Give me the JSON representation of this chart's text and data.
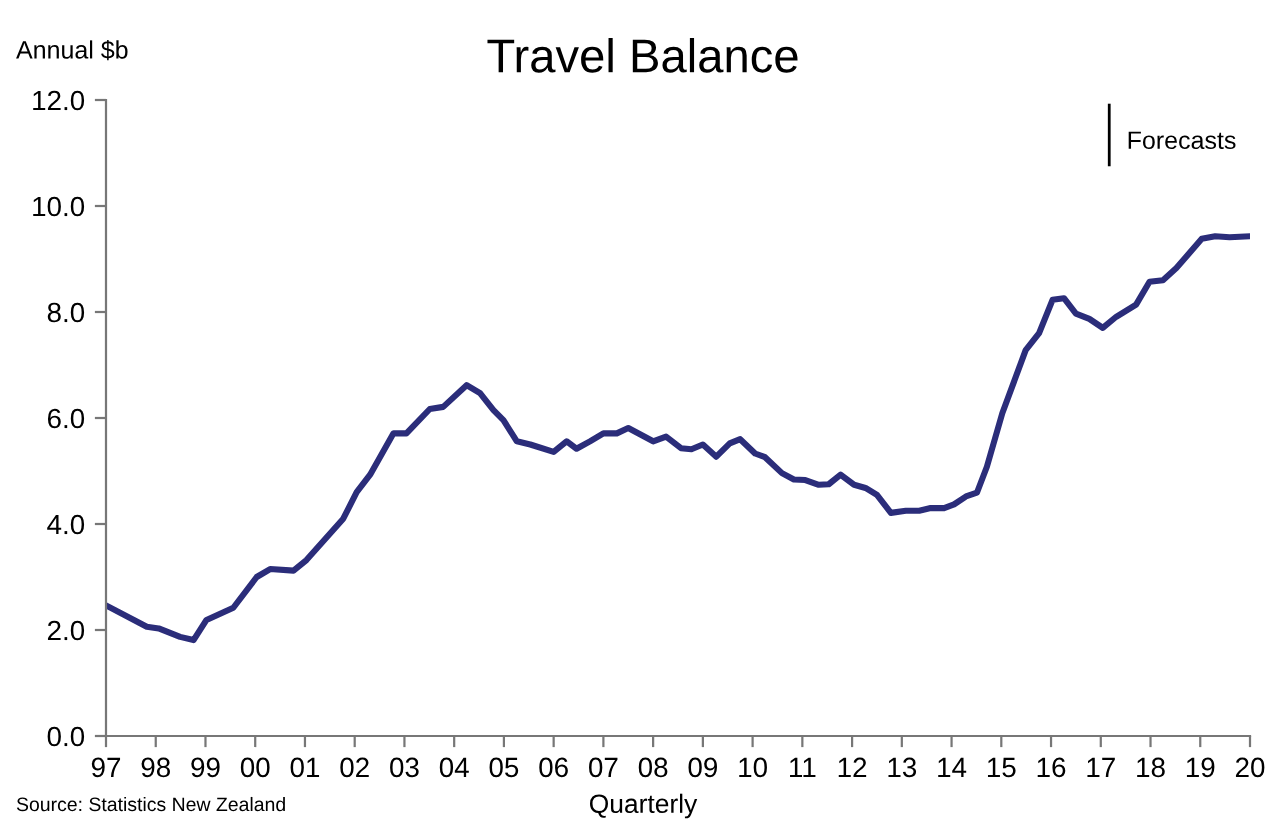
{
  "chart_data": {
    "type": "line",
    "title": "Travel Balance",
    "ylabel": "Annual $b",
    "xlabel": "Quarterly",
    "annotations": [
      "Source: Statistics New Zealand"
    ],
    "x": [
      1997.01,
      1997.82,
      1998.06,
      1998.49,
      1998.76,
      1999.02,
      1999.56,
      2000.03,
      2000.3,
      2000.77,
      2001.03,
      2001.77,
      2002.04,
      2002.31,
      2002.78,
      2003.04,
      2003.51,
      2003.78,
      2004.25,
      2004.52,
      2004.79,
      2004.99,
      2005.26,
      2005.53,
      2006.0,
      2006.26,
      2006.46,
      2006.73,
      2007.0,
      2007.27,
      2007.5,
      2008.0,
      2008.26,
      2008.56,
      2008.77,
      2009.0,
      2009.27,
      2009.54,
      2009.75,
      2010.05,
      2010.25,
      2010.59,
      2010.83,
      2011.06,
      2011.33,
      2011.53,
      2011.77,
      2012.04,
      2012.27,
      2012.5,
      2012.78,
      2013.08,
      2013.35,
      2013.58,
      2013.85,
      2014.05,
      2014.29,
      2014.51,
      2014.71,
      2015.02,
      2015.49,
      2015.76,
      2016.03,
      2016.26,
      2016.5,
      2016.77,
      2017.04,
      2017.31,
      2017.71,
      2017.98,
      2018.25,
      2018.52,
      2019.03,
      2019.3,
      2019.59,
      2020.0
    ],
    "series": [
      {
        "color": "#2b2d7a",
        "values": [
          2.46,
          2.06,
          2.03,
          1.87,
          1.81,
          2.19,
          2.42,
          3.0,
          3.15,
          3.12,
          3.32,
          4.1,
          4.6,
          4.93,
          5.71,
          5.71,
          6.17,
          6.21,
          6.62,
          6.47,
          6.15,
          5.96,
          5.56,
          5.5,
          5.36,
          5.56,
          5.42,
          5.56,
          5.71,
          5.71,
          5.81,
          5.56,
          5.65,
          5.43,
          5.41,
          5.5,
          5.27,
          5.52,
          5.6,
          5.33,
          5.26,
          4.96,
          4.84,
          4.83,
          4.74,
          4.75,
          4.93,
          4.74,
          4.68,
          4.55,
          4.21,
          4.25,
          4.25,
          4.3,
          4.3,
          4.37,
          4.52,
          4.59,
          5.08,
          6.09,
          7.28,
          7.6,
          8.23,
          8.26,
          7.97,
          7.87,
          7.7,
          7.91,
          8.14,
          8.57,
          8.6,
          8.83,
          9.38,
          9.43,
          9.41,
          9.43
        ]
      }
    ],
    "xlim": [
      1997,
      2020
    ],
    "xticks": [
      {
        "value": 1997,
        "label": "97"
      },
      {
        "value": 1998,
        "label": "98"
      },
      {
        "value": 1999,
        "label": "99"
      },
      {
        "value": 2000,
        "label": "00"
      },
      {
        "value": 2001,
        "label": "01"
      },
      {
        "value": 2002,
        "label": "02"
      },
      {
        "value": 2003,
        "label": "03"
      },
      {
        "value": 2004,
        "label": "04"
      },
      {
        "value": 2005,
        "label": "05"
      },
      {
        "value": 2006,
        "label": "06"
      },
      {
        "value": 2007,
        "label": "07"
      },
      {
        "value": 2008,
        "label": "08"
      },
      {
        "value": 2009,
        "label": "09"
      },
      {
        "value": 2010,
        "label": "10"
      },
      {
        "value": 2011,
        "label": "11"
      },
      {
        "value": 2012,
        "label": "12"
      },
      {
        "value": 2013,
        "label": "13"
      },
      {
        "value": 2014,
        "label": "14"
      },
      {
        "value": 2015,
        "label": "15"
      },
      {
        "value": 2016,
        "label": "16"
      },
      {
        "value": 2017,
        "label": "17"
      },
      {
        "value": 2018,
        "label": "18"
      },
      {
        "value": 2019,
        "label": "19"
      },
      {
        "value": 2020,
        "label": "20"
      }
    ],
    "ylim": [
      0,
      12
    ],
    "yticks": [
      {
        "value": 0,
        "label": "0.0"
      },
      {
        "value": 2,
        "label": "2.0"
      },
      {
        "value": 4,
        "label": "4.0"
      },
      {
        "value": 6,
        "label": "6.0"
      },
      {
        "value": 8,
        "label": "8.0"
      },
      {
        "value": 10,
        "label": "10.0"
      },
      {
        "value": 12,
        "label": "12.0"
      }
    ],
    "ref_lines": [
      {
        "axis": "x",
        "value": 2017.17,
        "label": "Forecasts",
        "color": "#000000"
      }
    ],
    "grid": false,
    "legend": false,
    "marker": "none",
    "line_style": "solid"
  }
}
